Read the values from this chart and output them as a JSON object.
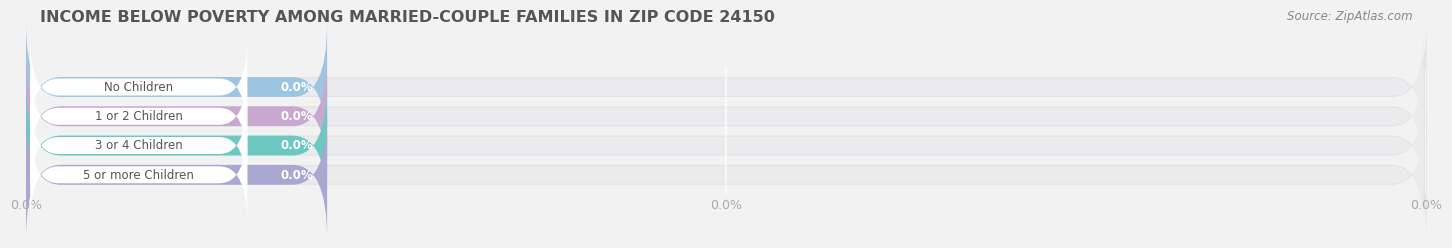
{
  "title": "INCOME BELOW POVERTY AMONG MARRIED-COUPLE FAMILIES IN ZIP CODE 24150",
  "source": "Source: ZipAtlas.com",
  "categories": [
    "No Children",
    "1 or 2 Children",
    "3 or 4 Children",
    "5 or more Children"
  ],
  "values": [
    0.0,
    0.0,
    0.0,
    0.0
  ],
  "bar_colors": [
    "#9dc4e0",
    "#c9a8d0",
    "#6cc8c0",
    "#a8a8d0"
  ],
  "background_color": "#f2f2f2",
  "bar_bg_color": "#e2e2e6",
  "bar_bg_color2": "#ebebee",
  "white_pill_color": "#ffffff",
  "title_color": "#555555",
  "tick_label_color": "#aaaaaa",
  "source_color": "#888888",
  "label_color": "#555555",
  "value_label_color": "#ffffff",
  "title_fontsize": 11.5,
  "label_fontsize": 8.5,
  "tick_fontsize": 9,
  "source_fontsize": 8.5,
  "x_tick_positions": [
    0,
    50,
    100
  ],
  "x_tick_labels": [
    "0.0%",
    "0.0%",
    "0.0%"
  ]
}
